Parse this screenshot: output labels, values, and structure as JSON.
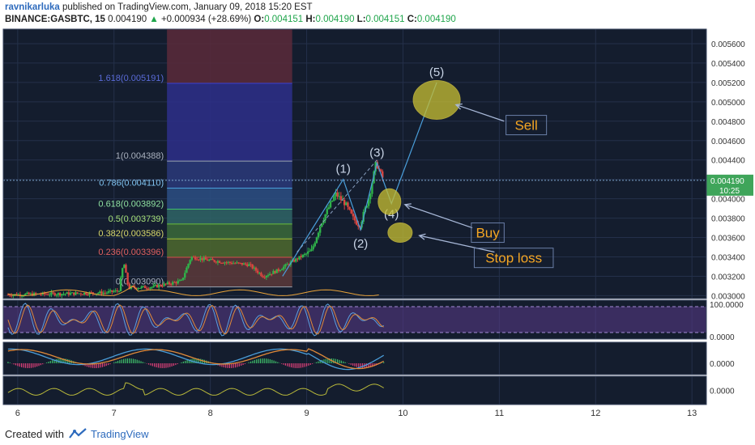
{
  "header": {
    "author": "ravnikarluka",
    "published": "published on TradingView.com, January 09, 2018 15:20 EST",
    "symbol": "BINANCE:GASBTC, 15",
    "last": "0.004190",
    "change": "+0.000934 (+28.69%)",
    "o_label": "O:",
    "o_value": "0.004151",
    "h_label": "H:",
    "h_value": "0.004190",
    "l_label": "L:",
    "l_value": "0.004151",
    "c_label": "C:",
    "c_value": "0.004190"
  },
  "footer": {
    "created_with": "Created with",
    "brand": "TradingView"
  },
  "colors": {
    "background": "#141d2e",
    "grid": "#24304a",
    "candle_up": "#2fb34a",
    "candle_down": "#d8453f",
    "annotation": "#f5a623",
    "wave_line": "#4a9eda",
    "circle_fill": "#c8c032",
    "price_tag": "#3fa55a"
  },
  "chart_data": [
    {
      "type": "candlestick",
      "title": "BINANCE:GASBTC, 15",
      "x_ticks": [
        "6",
        "7",
        "8",
        "9",
        "10",
        "11",
        "12",
        "13"
      ],
      "y_ticks": [
        "0.003000",
        "0.003200",
        "0.003400",
        "0.003600",
        "0.003800",
        "0.004000",
        "0.004200",
        "0.004400",
        "0.004600",
        "0.004800",
        "0.005000",
        "0.005200",
        "0.005400",
        "0.005600"
      ],
      "ylim": [
        0.00297,
        0.00575
      ],
      "xlim": [
        5.85,
        13.15
      ],
      "current_price": "0.004190",
      "countdown": "10:25",
      "close_path": [
        [
          5.9,
          0.00301
        ],
        [
          6.5,
          0.00302
        ],
        [
          6.9,
          0.00303
        ],
        [
          7.05,
          0.00305
        ],
        [
          7.1,
          0.00335
        ],
        [
          7.15,
          0.00308
        ],
        [
          7.4,
          0.00309
        ],
        [
          7.7,
          0.00315
        ],
        [
          7.8,
          0.0034
        ],
        [
          7.95,
          0.00337
        ],
        [
          8.2,
          0.00334
        ],
        [
          8.4,
          0.00332
        ],
        [
          8.55,
          0.0032
        ],
        [
          8.7,
          0.00326
        ],
        [
          8.9,
          0.00338
        ],
        [
          9.05,
          0.00346
        ],
        [
          9.15,
          0.00375
        ],
        [
          9.3,
          0.00405
        ],
        [
          9.4,
          0.00395
        ],
        [
          9.48,
          0.0038
        ],
        [
          9.55,
          0.00372
        ],
        [
          9.65,
          0.00402
        ],
        [
          9.72,
          0.00437
        ],
        [
          9.8,
          0.00419
        ]
      ],
      "fib_levels": [
        {
          "label": "1.618(0.005191)",
          "value": 0.005191
        },
        {
          "label": "1(0.004388)",
          "value": 0.004388
        },
        {
          "label": "0.786(0.004110)",
          "value": 0.00411
        },
        {
          "label": "0.618(0.003892)",
          "value": 0.003892
        },
        {
          "label": "0.5(0.003739)",
          "value": 0.003739
        },
        {
          "label": "0.382(0.003586)",
          "value": 0.003586
        },
        {
          "label": "0.236(0.003396)",
          "value": 0.003396
        },
        {
          "label": "0(0.003090)",
          "value": 0.00309
        }
      ],
      "elliott_waves": [
        {
          "label": "(1)",
          "x": 9.38,
          "y": 0.0042
        },
        {
          "label": "(2)",
          "x": 9.56,
          "y": 0.00368
        },
        {
          "label": "(3)",
          "x": 9.73,
          "y": 0.00437
        },
        {
          "label": "(4)",
          "x": 9.88,
          "y": 0.00395
        },
        {
          "label": "(5)",
          "x": 10.35,
          "y": 0.0052
        }
      ],
      "annotations": [
        {
          "text": "Sell",
          "x": 11.28,
          "y": 0.00476
        },
        {
          "text": "Buy",
          "x": 10.88,
          "y": 0.00365
        },
        {
          "text": "Stop loss",
          "x": 11.15,
          "y": 0.00339
        }
      ]
    },
    {
      "type": "line",
      "name": "oscillator-1",
      "y_ticks": [
        "100.0000",
        "0.0000"
      ],
      "ylim": [
        0,
        100
      ]
    },
    {
      "type": "line",
      "name": "oscillator-2",
      "y_ticks": [
        "0.0000"
      ]
    },
    {
      "type": "line",
      "name": "oscillator-3",
      "y_ticks": [
        "0.0000"
      ]
    }
  ]
}
